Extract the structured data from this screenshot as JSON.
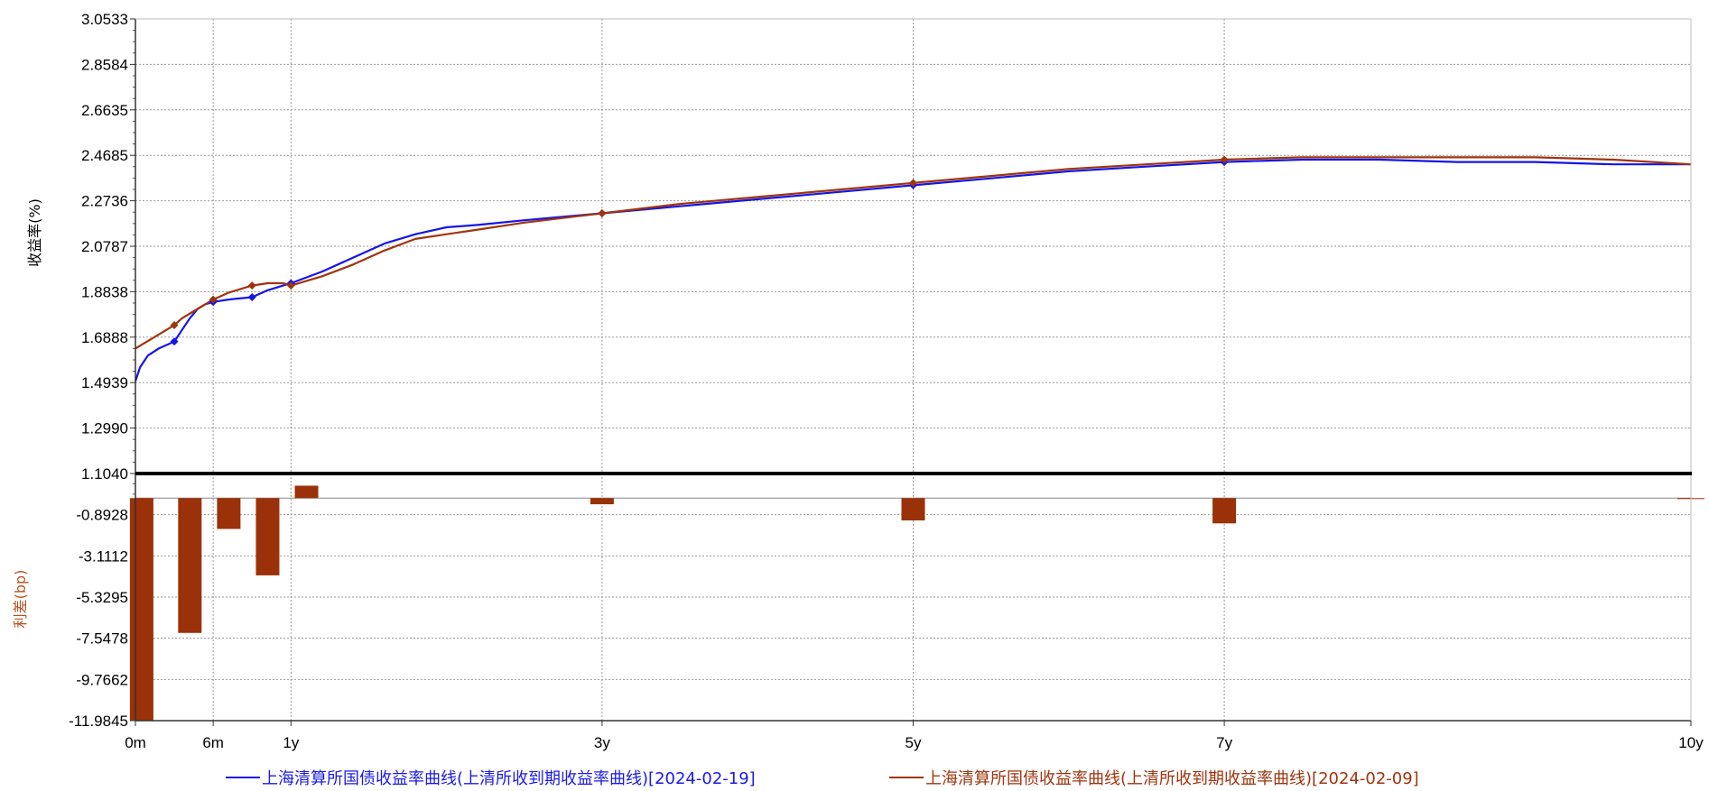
{
  "chart_data": [
    {
      "type": "line",
      "ylabel": "收益率(%)",
      "y_ticks": [
        "3.0533",
        "2.8584",
        "2.6635",
        "2.4685",
        "2.2736",
        "2.0787",
        "1.8838",
        "1.6888",
        "1.4939",
        "1.2990",
        "1.1040"
      ],
      "ylim": [
        1.104,
        3.0533
      ],
      "x_ticks": [
        "0m",
        "6m",
        "1y",
        "3y",
        "5y",
        "7y",
        "10y"
      ],
      "x_tick_values": [
        0,
        0.5,
        1,
        3,
        5,
        7,
        10
      ],
      "xlim": [
        0,
        10
      ],
      "grid": true,
      "series": [
        {
          "name": "上海清算所国债收益率曲线(上清所收到期收益率曲线)[2024-02-19]",
          "color": "#1515e6",
          "x": [
            0,
            0.03,
            0.08,
            0.15,
            0.25,
            0.3,
            0.35,
            0.4,
            0.45,
            0.5,
            0.6,
            0.75,
            0.85,
            0.95,
            1,
            1.2,
            1.4,
            1.6,
            1.8,
            2,
            2.2,
            2.5,
            3,
            3.5,
            4,
            4.5,
            5,
            5.5,
            6,
            6.5,
            7,
            7.5,
            8,
            8.5,
            9,
            9.5,
            10
          ],
          "y": [
            1.5,
            1.56,
            1.61,
            1.64,
            1.67,
            1.72,
            1.77,
            1.81,
            1.83,
            1.84,
            1.85,
            1.86,
            1.89,
            1.91,
            1.92,
            1.97,
            2.03,
            2.09,
            2.13,
            2.16,
            2.17,
            2.19,
            2.22,
            2.25,
            2.28,
            2.31,
            2.34,
            2.37,
            2.4,
            2.42,
            2.44,
            2.45,
            2.45,
            2.44,
            2.44,
            2.43,
            2.43
          ]
        },
        {
          "name": "上海清算所国债收益率曲线(上清所收到期收益率曲线)[2024-02-09]",
          "color": "#a0340d",
          "x": [
            0,
            0.05,
            0.1,
            0.2,
            0.25,
            0.3,
            0.4,
            0.5,
            0.6,
            0.75,
            0.85,
            0.95,
            1,
            1.2,
            1.4,
            1.6,
            1.8,
            2,
            2.2,
            2.5,
            3,
            3.5,
            4,
            4.5,
            5,
            5.5,
            6,
            6.5,
            7,
            7.5,
            8,
            8.5,
            9,
            9.5,
            10
          ],
          "y": [
            1.64,
            1.66,
            1.68,
            1.72,
            1.74,
            1.77,
            1.81,
            1.85,
            1.88,
            1.91,
            1.92,
            1.92,
            1.91,
            1.95,
            2.0,
            2.06,
            2.11,
            2.13,
            2.15,
            2.18,
            2.22,
            2.26,
            2.29,
            2.32,
            2.35,
            2.38,
            2.41,
            2.43,
            2.45,
            2.46,
            2.46,
            2.46,
            2.46,
            2.45,
            2.43
          ]
        }
      ],
      "markers": {
        "blue_x": [
          0.25,
          0.5,
          0.75,
          1,
          3,
          5,
          7
        ],
        "red_x": [
          0.25,
          0.5,
          0.75,
          1,
          3,
          5,
          7
        ]
      }
    },
    {
      "type": "bar",
      "ylabel": "利差(bp)",
      "y_ticks": [
        "-0.8928",
        "-3.1112",
        "-5.3295",
        "-7.5478",
        "-9.7662",
        "-11.9845"
      ],
      "ylim": [
        -11.9845,
        1.3255
      ],
      "x": [
        0.04,
        0.35,
        0.6,
        0.85,
        1.1,
        3,
        5,
        7,
        10
      ],
      "values": [
        -11.98,
        -7.26,
        -1.66,
        -4.16,
        0.67,
        -0.33,
        -1.2,
        -1.36,
        -0.05
      ],
      "color": "#9b3108"
    }
  ],
  "legend": [
    "上海清算所国债收益率曲线(上清所收到期收益率曲线)[2024-02-19]",
    "上海清算所国债收益率曲线(上清所收到期收益率曲线)[2024-02-09]"
  ]
}
